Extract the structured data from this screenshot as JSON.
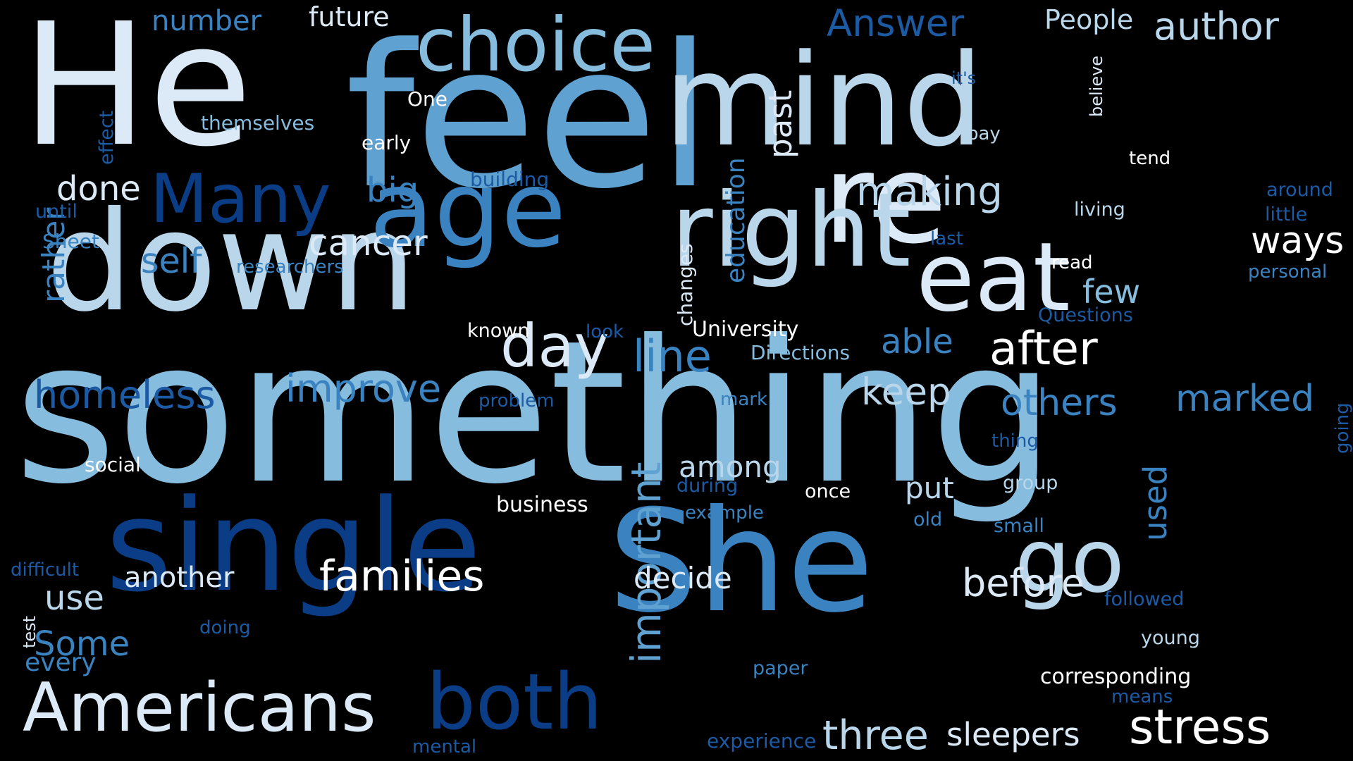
{
  "palette": {
    "background": "#000000",
    "white": "#ffffff",
    "pale": "#dce9f6",
    "light": "#b9d6ea",
    "light_mid": "#86bcdd",
    "mid": "#5fa1d0",
    "mid_dark": "#3a83c0",
    "dark": "#1c5aa3",
    "darkest": "#0a3d86"
  },
  "words": [
    {
      "text": "something",
      "color": "light_mid"
    },
    {
      "text": "feel",
      "color": "mid"
    },
    {
      "text": "He",
      "color": "pale"
    },
    {
      "text": "mind",
      "color": "light"
    },
    {
      "text": "re",
      "color": "pale"
    },
    {
      "text": "single",
      "color": "darkest"
    },
    {
      "text": "She",
      "color": "mid_dark"
    },
    {
      "text": "down",
      "color": "light"
    },
    {
      "text": "right",
      "color": "light"
    },
    {
      "text": "age",
      "color": "mid_dark"
    },
    {
      "text": "eat",
      "color": "pale"
    },
    {
      "text": "choice",
      "color": "light_mid"
    },
    {
      "text": "go",
      "color": "light"
    },
    {
      "text": "Americans",
      "color": "pale"
    },
    {
      "text": "both",
      "color": "darkest"
    },
    {
      "text": "Many",
      "color": "darkest"
    },
    {
      "text": "day",
      "color": "pale"
    },
    {
      "text": "stress",
      "color": "white"
    },
    {
      "text": "after",
      "color": "white"
    },
    {
      "text": "families",
      "color": "white"
    },
    {
      "text": "three",
      "color": "light"
    },
    {
      "text": "line",
      "color": "mid_dark"
    },
    {
      "text": "before",
      "color": "pale"
    },
    {
      "text": "important",
      "color": "mid"
    },
    {
      "text": "making",
      "color": "light"
    },
    {
      "text": "author",
      "color": "light"
    },
    {
      "text": "Answer",
      "color": "dark"
    },
    {
      "text": "ways",
      "color": "white"
    },
    {
      "text": "keep",
      "color": "light"
    },
    {
      "text": "homeless",
      "color": "dark"
    },
    {
      "text": "improve",
      "color": "mid_dark"
    },
    {
      "text": "cancer",
      "color": "pale"
    },
    {
      "text": "others",
      "color": "mid_dark"
    },
    {
      "text": "marked",
      "color": "mid_dark"
    },
    {
      "text": "sleepers",
      "color": "pale"
    },
    {
      "text": "past",
      "color": "pale"
    },
    {
      "text": "Some",
      "color": "mid_dark"
    },
    {
      "text": "self",
      "color": "mid_dark"
    },
    {
      "text": "use",
      "color": "light"
    },
    {
      "text": "done",
      "color": "pale"
    },
    {
      "text": "able",
      "color": "mid_dark"
    },
    {
      "text": "few",
      "color": "light_mid"
    },
    {
      "text": "used",
      "color": "mid_dark"
    },
    {
      "text": "big",
      "color": "mid_dark"
    },
    {
      "text": "decide",
      "color": "pale"
    },
    {
      "text": "another",
      "color": "pale"
    },
    {
      "text": "put",
      "color": "light"
    },
    {
      "text": "among",
      "color": "light"
    },
    {
      "text": "People",
      "color": "light"
    },
    {
      "text": "rather",
      "color": "mid_dark"
    },
    {
      "text": "education",
      "color": "mid_dark"
    },
    {
      "text": "number",
      "color": "mid_dark"
    },
    {
      "text": "future",
      "color": "pale"
    },
    {
      "text": "every",
      "color": "mid_dark"
    },
    {
      "text": "changes",
      "color": "pale"
    },
    {
      "text": "corresponding",
      "color": "white"
    },
    {
      "text": "business",
      "color": "white"
    },
    {
      "text": "University",
      "color": "white"
    },
    {
      "text": "Directions",
      "color": "light_mid"
    },
    {
      "text": "researchers",
      "color": "mid_dark"
    },
    {
      "text": "themselves",
      "color": "light_mid"
    },
    {
      "text": "experience",
      "color": "dark"
    },
    {
      "text": "building",
      "color": "dark"
    },
    {
      "text": "Questions",
      "color": "dark"
    },
    {
      "text": "followed",
      "color": "dark"
    },
    {
      "text": "personal",
      "color": "mid_dark"
    },
    {
      "text": "difficult",
      "color": "dark"
    },
    {
      "text": "around",
      "color": "dark"
    },
    {
      "text": "little",
      "color": "dark"
    },
    {
      "text": "example",
      "color": "mid_dark"
    },
    {
      "text": "problem",
      "color": "dark"
    },
    {
      "text": "effect",
      "color": "dark"
    },
    {
      "text": "believe",
      "color": "pale"
    },
    {
      "text": "living",
      "color": "light"
    },
    {
      "text": "social",
      "color": "white"
    },
    {
      "text": "doing",
      "color": "dark"
    },
    {
      "text": "during",
      "color": "dark"
    },
    {
      "text": "early",
      "color": "white"
    },
    {
      "text": "known",
      "color": "white"
    },
    {
      "text": "mental",
      "color": "dark"
    },
    {
      "text": "young",
      "color": "light"
    },
    {
      "text": "group",
      "color": "light"
    },
    {
      "text": "paper",
      "color": "mid_dark"
    },
    {
      "text": "means",
      "color": "dark"
    },
    {
      "text": "small",
      "color": "mid_dark"
    },
    {
      "text": "thing",
      "color": "dark"
    },
    {
      "text": "until",
      "color": "dark"
    },
    {
      "text": "Sheet",
      "color": "mid_dark"
    },
    {
      "text": "going",
      "color": "dark"
    },
    {
      "text": "once",
      "color": "white"
    },
    {
      "text": "tend",
      "color": "white"
    },
    {
      "text": "read",
      "color": "white"
    },
    {
      "text": "last",
      "color": "dark"
    },
    {
      "text": "look",
      "color": "dark"
    },
    {
      "text": "mark",
      "color": "mid_dark"
    },
    {
      "text": "test",
      "color": "pale"
    },
    {
      "text": "One",
      "color": "white"
    },
    {
      "text": "pay",
      "color": "light"
    },
    {
      "text": "old",
      "color": "mid_dark"
    },
    {
      "text": "it's",
      "color": "dark"
    }
  ]
}
